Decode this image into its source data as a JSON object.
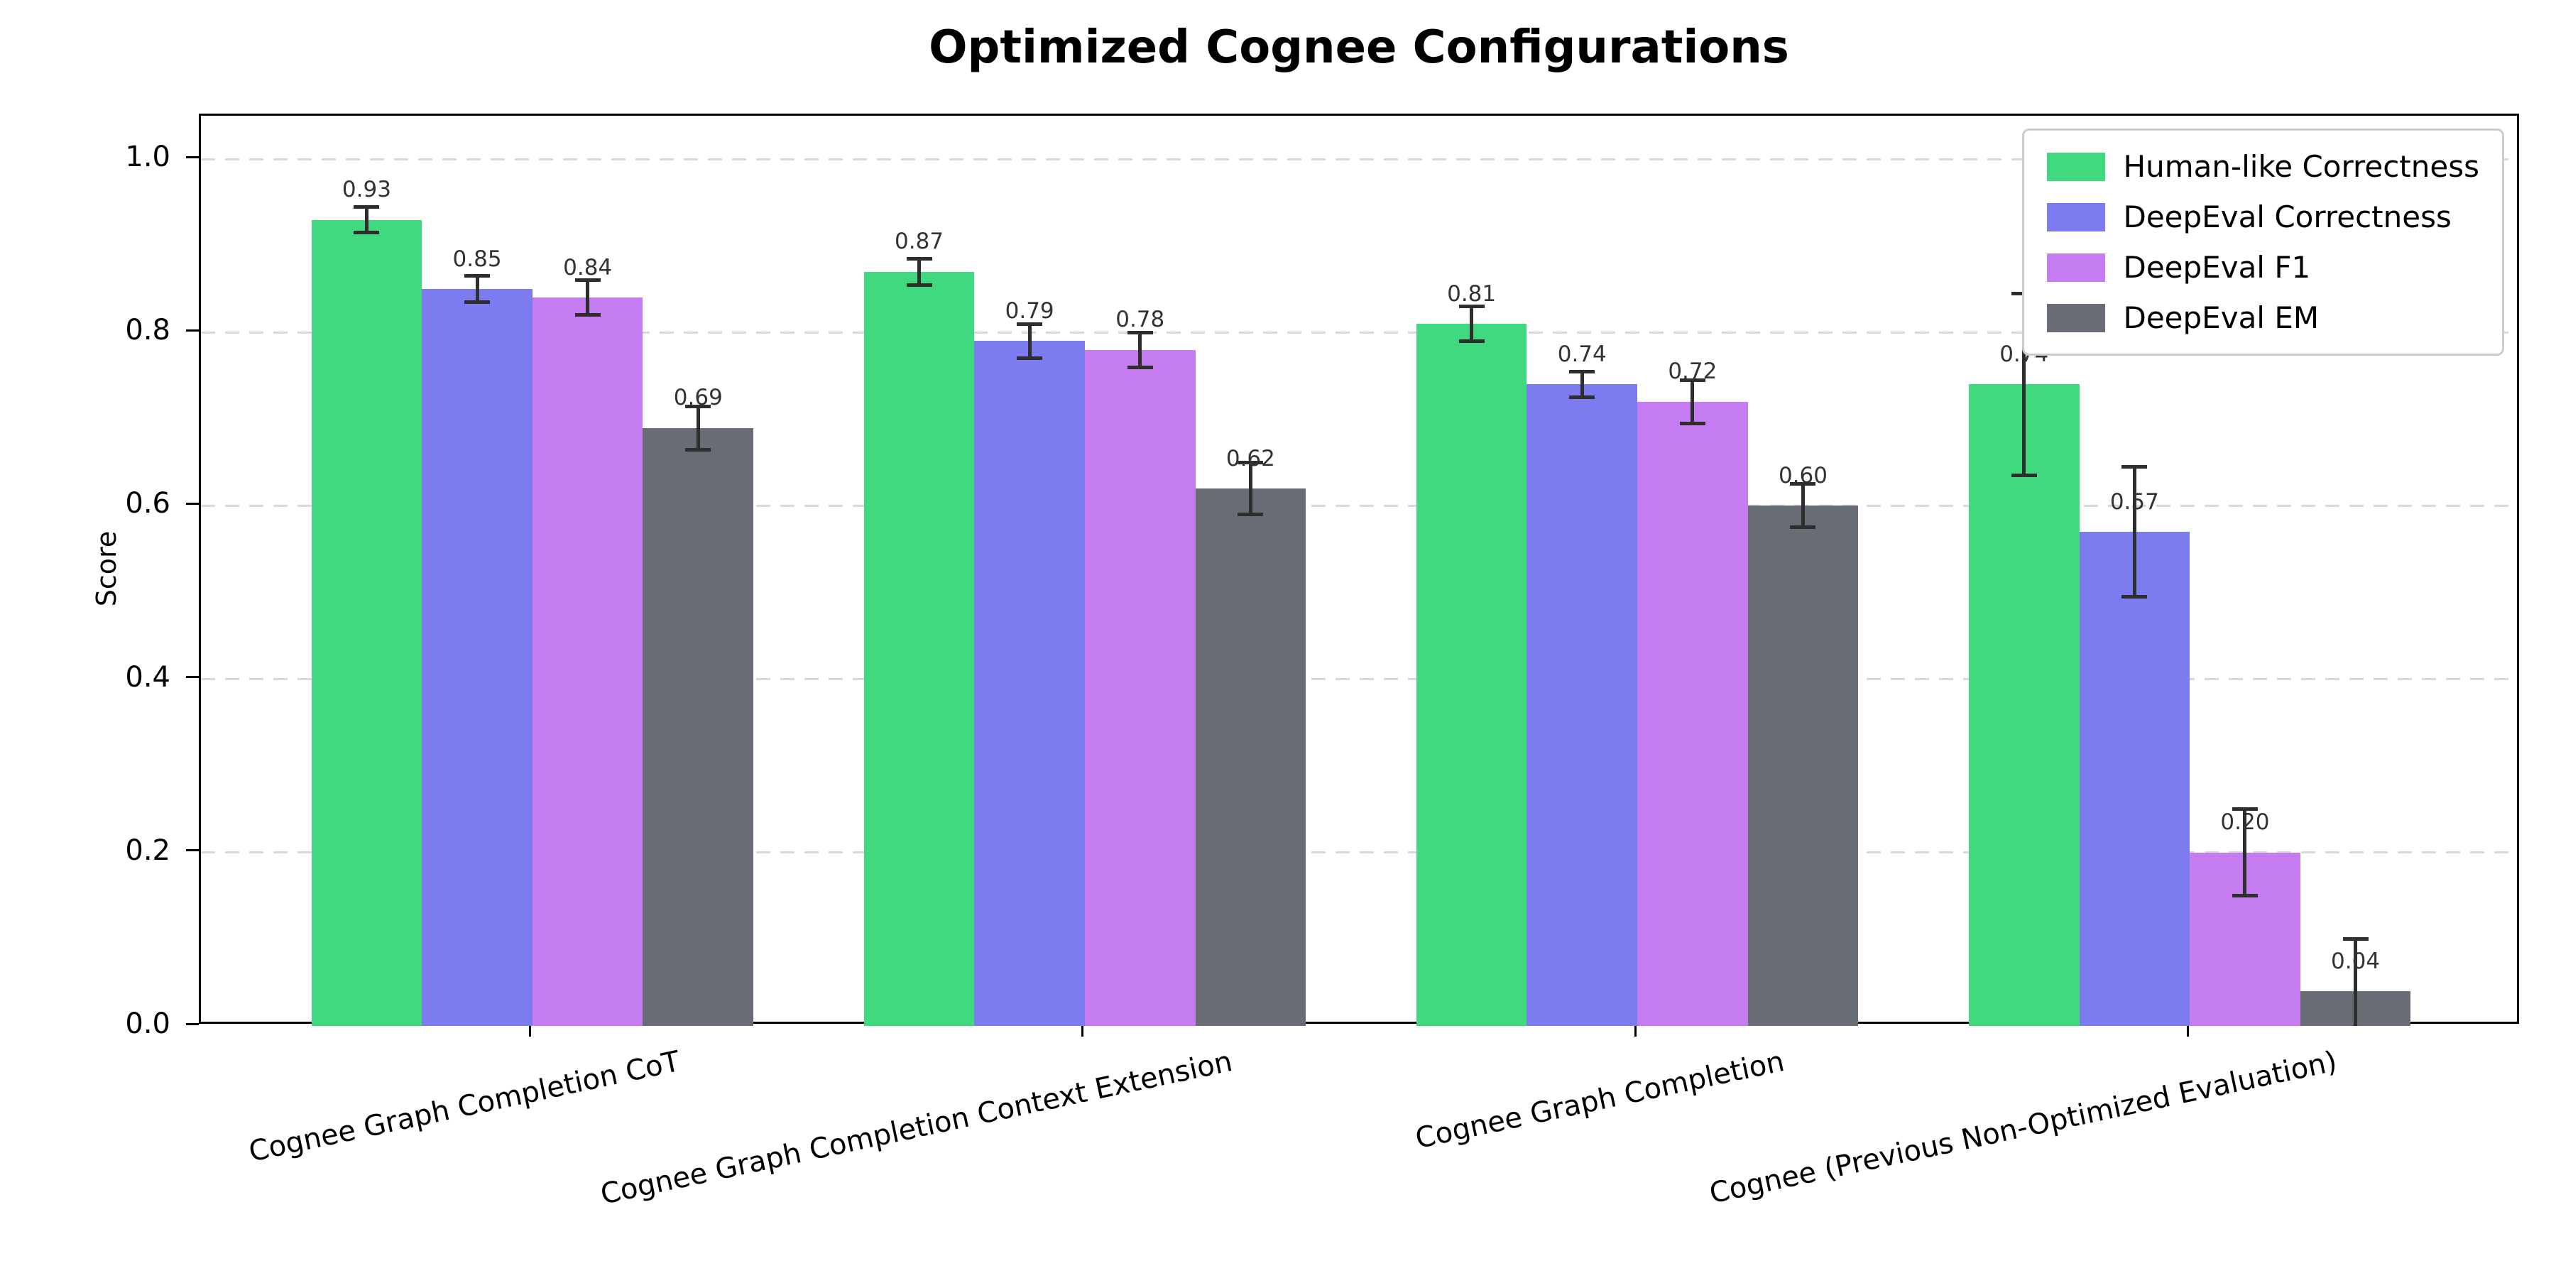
{
  "title": "Optimized Cognee Configurations",
  "ylabel": "Score",
  "chart_data": {
    "type": "bar",
    "title": "Optimized Cognee Configurations",
    "xlabel": "",
    "ylabel": "Score",
    "ylim": [
      0,
      1.05
    ],
    "yticks": [
      0.0,
      0.2,
      0.4,
      0.6,
      0.8,
      1.0
    ],
    "grid": "horizontal-dashed",
    "legend_position": "upper-right",
    "value_label_format": "0.00",
    "categories": [
      "Cognee Graph Completion CoT",
      "Cognee Graph Completion Context Extension",
      "Cognee Graph Completion",
      "Cognee (Previous Non-Optimized Evaluation)"
    ],
    "series": [
      {
        "name": "Human-like Correctness",
        "color": "#41d97f",
        "values": [
          0.93,
          0.87,
          0.81,
          0.74
        ],
        "errors": [
          0.015,
          0.015,
          0.02,
          0.105
        ]
      },
      {
        "name": "DeepEval Correctness",
        "color": "#7c7cf0",
        "values": [
          0.85,
          0.79,
          0.74,
          0.57
        ],
        "errors": [
          0.015,
          0.02,
          0.015,
          0.075
        ]
      },
      {
        "name": "DeepEval F1",
        "color": "#c57cf0",
        "values": [
          0.84,
          0.78,
          0.72,
          0.2
        ],
        "errors": [
          0.02,
          0.02,
          0.025,
          0.05
        ]
      },
      {
        "name": "DeepEval EM",
        "color": "#686c75",
        "values": [
          0.69,
          0.62,
          0.6,
          0.04
        ],
        "errors": [
          0.025,
          0.03,
          0.025,
          0.06
        ]
      }
    ]
  }
}
